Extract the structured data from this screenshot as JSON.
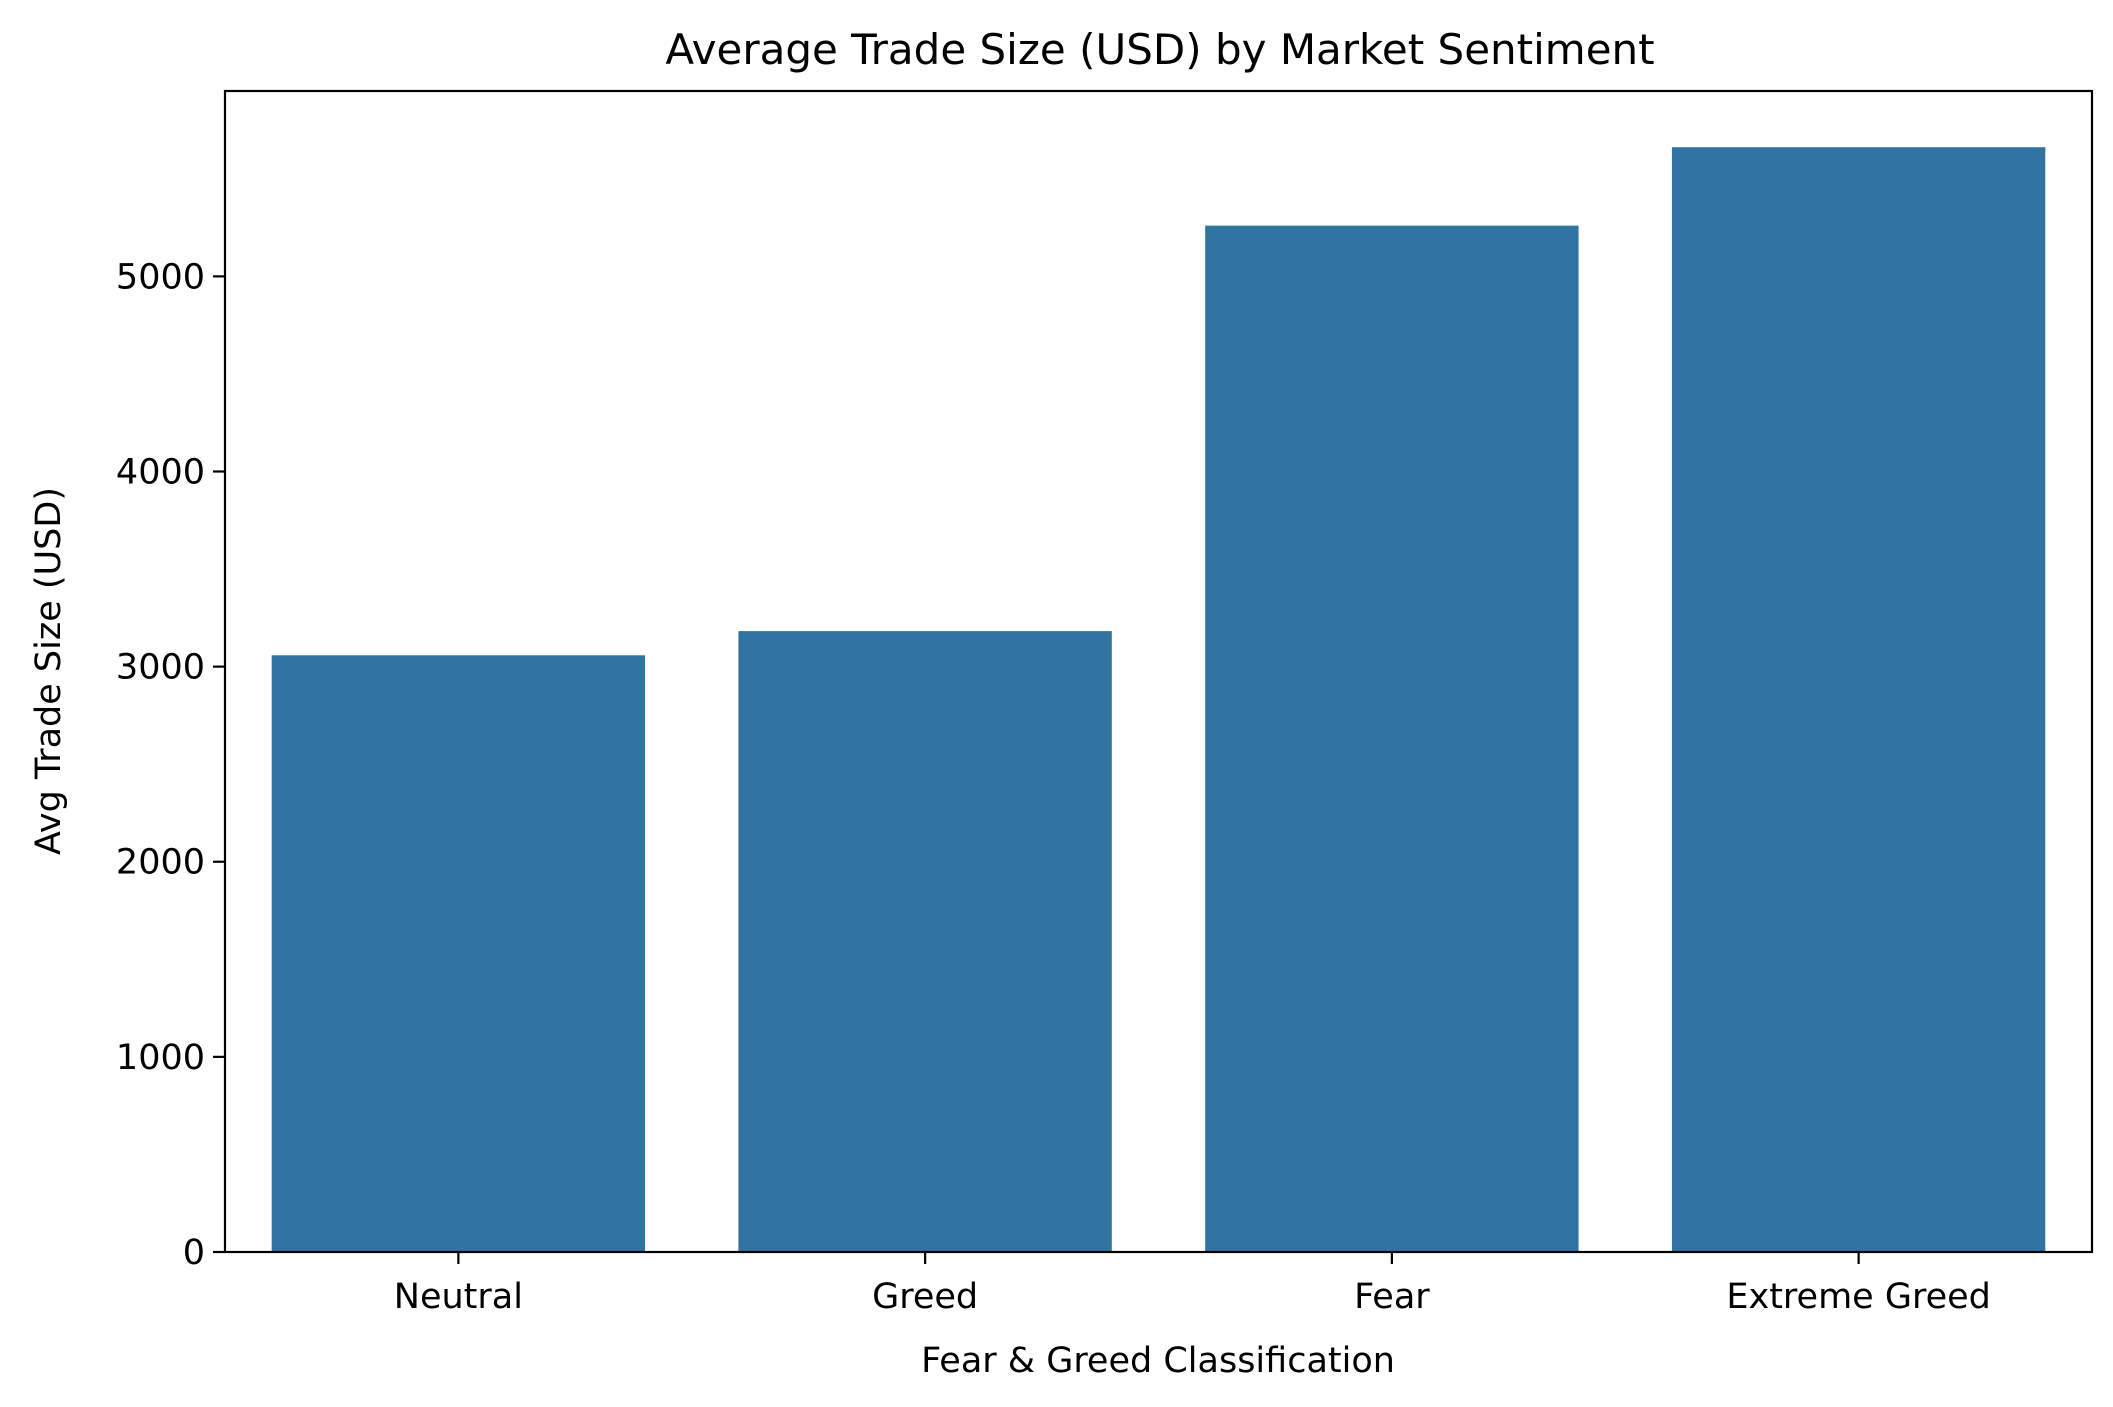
{
  "chart_data": {
    "type": "bar",
    "title": "Average Trade Size (USD) by Market Sentiment",
    "xlabel": "Fear & Greed Classification",
    "ylabel": "Avg Trade Size (USD)",
    "categories": [
      "Neutral",
      "Greed",
      "Fear",
      "Extreme Greed"
    ],
    "values": [
      3058,
      3182,
      5260,
      5662
    ],
    "ylim": [
      0,
      5950
    ],
    "yticks": [
      0,
      1000,
      2000,
      3000,
      4000,
      5000
    ],
    "grid": false,
    "legend": "none",
    "bar_color": "#3274a1"
  }
}
